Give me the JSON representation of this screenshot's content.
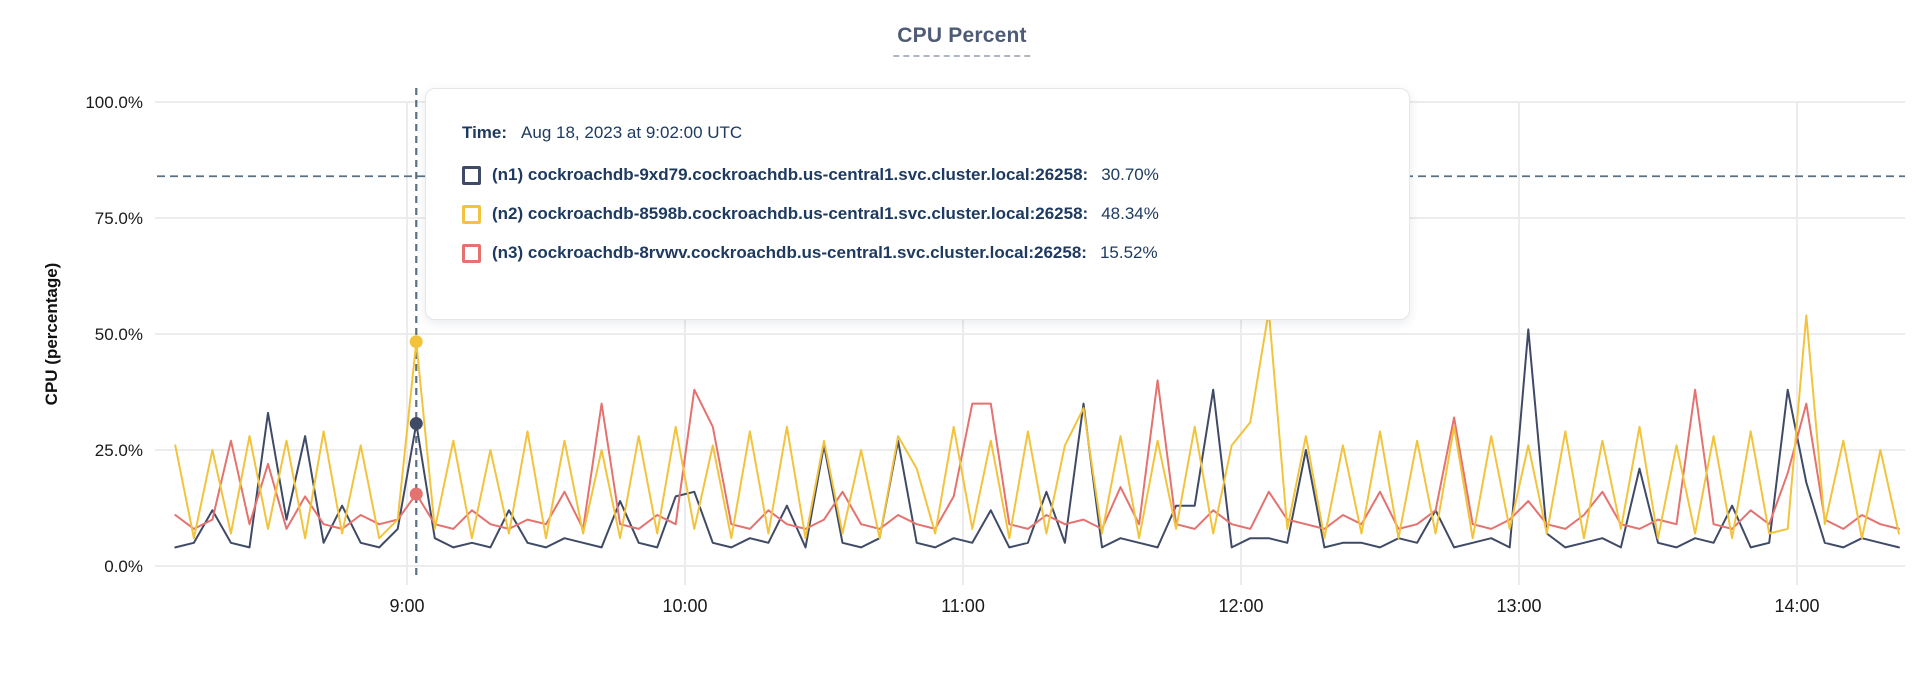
{
  "title": "CPU Percent",
  "tooltip": {
    "time_label": "Time:",
    "time_value": "Aug 18, 2023 at 9:02:00 UTC",
    "rows": [
      {
        "label": "(n1) cockroachdb-9xd79.cockroachdb.us-central1.svc.cluster.local:26258:",
        "value": "30.70%",
        "color": "#3f4b66"
      },
      {
        "label": "(n2) cockroachdb-8598b.cockroachdb.us-central1.svc.cluster.local:26258:",
        "value": "48.34%",
        "color": "#f2c43d"
      },
      {
        "label": "(n3) cockroachdb-8rvwv.cockroachdb.us-central1.svc.cluster.local:26258:",
        "value": "15.52%",
        "color": "#e4726f"
      }
    ]
  },
  "chart_data": {
    "type": "line",
    "title": "CPU Percent",
    "xlabel": "",
    "ylabel": "CPU (percentage)",
    "ylim": [
      0,
      100
    ],
    "grid": true,
    "legend_position": "tooltip",
    "y_ticks": [
      {
        "value": 0,
        "label": "0.0%"
      },
      {
        "value": 25,
        "label": "25.0%"
      },
      {
        "value": 50,
        "label": "50.0%"
      },
      {
        "value": 75,
        "label": "75.0%"
      },
      {
        "value": 100,
        "label": "100.0%"
      }
    ],
    "x_ticks": [
      {
        "minute": 540,
        "label": "9:00"
      },
      {
        "minute": 600,
        "label": "10:00"
      },
      {
        "minute": 660,
        "label": "11:00"
      },
      {
        "minute": 720,
        "label": "12:00"
      },
      {
        "minute": 780,
        "label": "13:00"
      },
      {
        "minute": 840,
        "label": "14:00"
      }
    ],
    "x_start_min": 490,
    "x_step_min": 4,
    "threshold_line": {
      "y_pct": 84,
      "style": "dashed"
    },
    "hover": {
      "minute": 542,
      "index": 13,
      "time_text": "Aug 18, 2023 at 9:02:00 UTC"
    },
    "series": [
      {
        "name": "(n1) cockroachdb-9xd79.cockroachdb.us-central1.svc.cluster.local:26258",
        "color": "#3f4b66",
        "hover_value_pct": 30.7,
        "values": [
          4,
          5,
          12,
          5,
          4,
          33,
          10,
          28,
          5,
          13,
          5,
          4,
          8,
          30.7,
          6,
          4,
          5,
          4,
          12,
          5,
          4,
          6,
          5,
          4,
          14,
          5,
          4,
          15,
          16,
          5,
          4,
          6,
          5,
          13,
          4,
          26,
          5,
          4,
          6,
          27,
          5,
          4,
          6,
          5,
          12,
          4,
          5,
          16,
          5,
          35,
          4,
          6,
          5,
          4,
          13,
          13,
          38,
          4,
          6,
          6,
          5,
          25,
          4,
          5,
          5,
          4,
          6,
          5,
          12,
          4,
          5,
          6,
          4,
          51,
          7,
          4,
          5,
          6,
          4,
          21,
          5,
          4,
          6,
          5,
          13,
          4,
          5,
          38,
          18,
          5,
          4,
          6,
          5,
          4
        ]
      },
      {
        "name": "(n2) cockroachdb-8598b.cockroachdb.us-central1.svc.cluster.local:26258",
        "color": "#f2c43d",
        "hover_value_pct": 48.34,
        "values": [
          26,
          6,
          25,
          7,
          28,
          8,
          27,
          6,
          29,
          7,
          26,
          6,
          10,
          48.34,
          8,
          27,
          6,
          25,
          7,
          29,
          6,
          27,
          7,
          25,
          6,
          28,
          7,
          30,
          8,
          26,
          6,
          29,
          7,
          30,
          6,
          27,
          7,
          25,
          6,
          28,
          21,
          7,
          30,
          8,
          27,
          6,
          29,
          7,
          26,
          34,
          7,
          28,
          6,
          27,
          8,
          30,
          7,
          26,
          31,
          55,
          8,
          28,
          6,
          26,
          7,
          29,
          6,
          27,
          7,
          30,
          6,
          28,
          8,
          26,
          7,
          29,
          6,
          27,
          8,
          30,
          6,
          26,
          7,
          28,
          6,
          29,
          7,
          8,
          54,
          9,
          27,
          6,
          25,
          7
        ]
      },
      {
        "name": "(n3) cockroachdb-8rvwv.cockroachdb.us-central1.svc.cluster.local:26258",
        "color": "#e4726f",
        "hover_value_pct": 15.52,
        "values": [
          11,
          8,
          10,
          27,
          9,
          22,
          8,
          15,
          9,
          8,
          11,
          9,
          10,
          15.52,
          9,
          8,
          12,
          9,
          8,
          10,
          9,
          16,
          8,
          35,
          9,
          8,
          11,
          9,
          38,
          30,
          9,
          8,
          12,
          9,
          8,
          10,
          16,
          9,
          8,
          11,
          9,
          8,
          15,
          35,
          35,
          9,
          8,
          11,
          9,
          10,
          8,
          17,
          9,
          40,
          9,
          8,
          12,
          9,
          8,
          16,
          10,
          9,
          8,
          11,
          9,
          16,
          8,
          9,
          12,
          32,
          9,
          8,
          10,
          14,
          9,
          8,
          11,
          16,
          9,
          8,
          10,
          9,
          38,
          9,
          8,
          12,
          9,
          20,
          35,
          10,
          8,
          11,
          9,
          8
        ]
      }
    ]
  }
}
